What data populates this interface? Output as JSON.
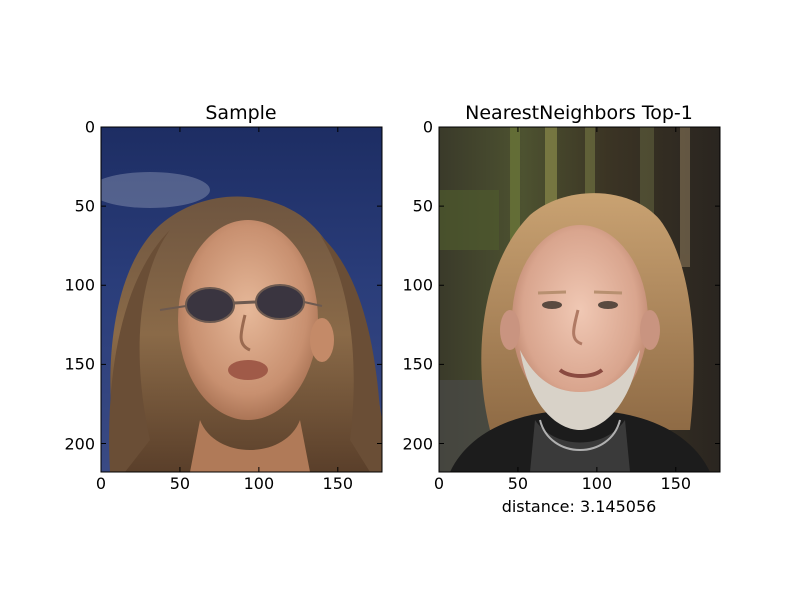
{
  "chart_data": [
    {
      "type": "image",
      "title": "Sample",
      "xlabel": "",
      "image_width": 178,
      "image_height": 218,
      "xlim": [
        0,
        178
      ],
      "ylim": [
        218,
        0
      ],
      "xticks": [
        0,
        50,
        100,
        150
      ],
      "yticks": [
        0,
        50,
        100,
        150,
        200
      ],
      "image_content": "sample-face-photo"
    },
    {
      "type": "image",
      "title": "NearestNeighbors Top-1",
      "xlabel": "distance: 3.145056",
      "image_width": 178,
      "image_height": 218,
      "xlim": [
        0,
        178
      ],
      "ylim": [
        218,
        0
      ],
      "xticks": [
        0,
        50,
        100,
        150
      ],
      "yticks": [
        0,
        50,
        100,
        150,
        200
      ],
      "image_content": "nearest-neighbor-face-photo"
    }
  ]
}
